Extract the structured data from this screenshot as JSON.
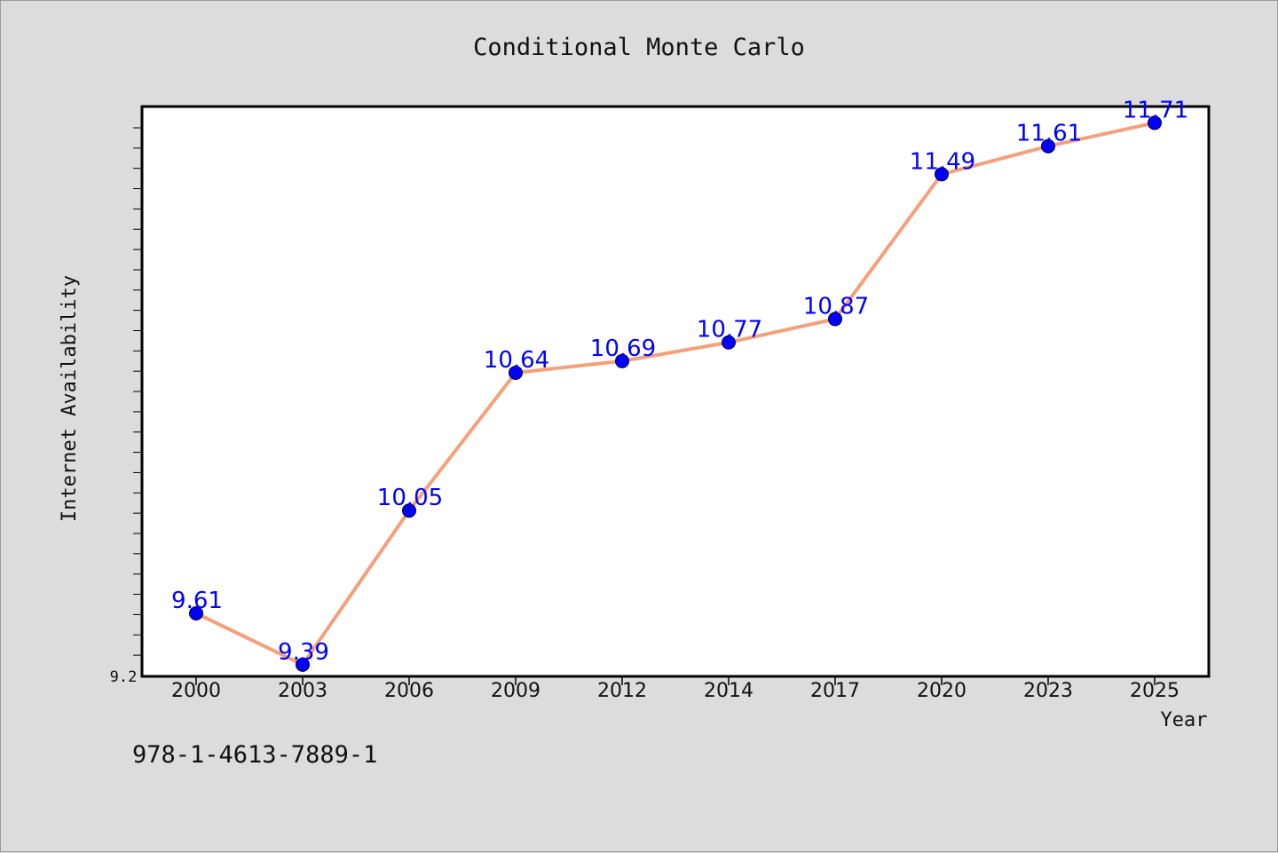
{
  "chart_data": {
    "type": "line",
    "title": "Conditional Monte Carlo",
    "xlabel": "Year",
    "ylabel": "Internet Availability",
    "categories": [
      "2000",
      "2003",
      "2006",
      "2009",
      "2012",
      "2014",
      "2017",
      "2020",
      "2023",
      "2025"
    ],
    "series": [
      {
        "values": [
          9.61,
          9.39,
          10.05,
          10.64,
          10.69,
          10.77,
          10.87,
          11.49,
          11.61,
          11.71
        ],
        "data_labels": [
          "9.61",
          "9.39",
          "10.05",
          "10.64",
          "10.69",
          "10.77",
          "10.87",
          "11.49",
          "11.61",
          "11.71"
        ]
      }
    ],
    "ylim": [
      9.34,
      11.78
    ],
    "y_tick_label": "9.2",
    "grid": false,
    "colors": {
      "line": "#f4a07a",
      "marker": "#0000ff",
      "label": "#0000ff",
      "background": "#dcdcdc",
      "plot_bg": "#ffffff"
    }
  },
  "footer": {
    "code": "978-1-4613-7889-1"
  }
}
